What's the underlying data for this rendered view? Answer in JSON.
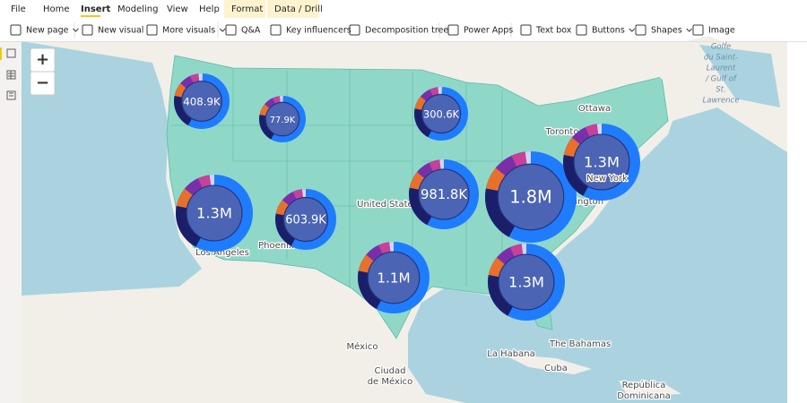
{
  "ribbon": {
    "tabs": [
      "File",
      "Home",
      "Insert",
      "Modeling",
      "View",
      "Help",
      "Format",
      "Data / Drill"
    ],
    "tools": [
      "New page",
      "New visual",
      "More visuals",
      "Q&A",
      "Key influencers",
      "Decomposition tree",
      "Power Apps",
      "Text box",
      "Buttons",
      "Shapes",
      "Image"
    ]
  },
  "map": {
    "zoom_in": "+",
    "zoom_out": "−",
    "place_labels": [
      "Ottawa",
      "Toronto",
      "hington",
      "United States",
      "Phoenix",
      "Los Angeles",
      "México",
      "Ciudad",
      "de México",
      "La Habana",
      "Cuba",
      "The Bahamas",
      "República",
      "Dominicana",
      "Golfe",
      "du Saint-",
      "Laurent",
      "/ Gulf of",
      "St.",
      "Lawrence",
      "New York"
    ],
    "bubbles": [
      {
        "label": "408.9K"
      },
      {
        "label": "77.9K"
      },
      {
        "label": "300.6K"
      },
      {
        "label": "1.3M"
      },
      {
        "label": "603.9K"
      },
      {
        "label": "981.8K"
      },
      {
        "label": "1.8M"
      },
      {
        "label": "1.3M"
      },
      {
        "label": "1.1M"
      },
      {
        "label": "1.3M"
      }
    ]
  }
}
